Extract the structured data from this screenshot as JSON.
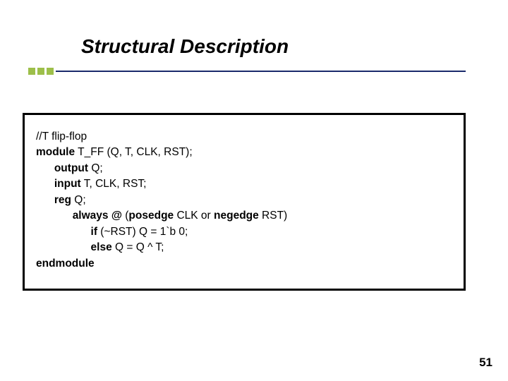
{
  "slide": {
    "title": "Structural Description",
    "title_color": "#000000",
    "title_fontsize": 28,
    "bullet_color": "#9dbf4a",
    "underline_color": "#1a2a6c",
    "page_number": "51",
    "background_color": "#ffffff"
  },
  "code": {
    "box_border_color": "#000000",
    "box_border_width": 3,
    "font_family": "Verdana",
    "font_size": 15.5,
    "text_color": "#000000",
    "lines": [
      {
        "indent": 0,
        "segments": [
          {
            "t": "//T flip-flop",
            "b": false
          }
        ]
      },
      {
        "indent": 0,
        "segments": [
          {
            "t": "module",
            "b": true
          },
          {
            "t": " T_FF (Q, T, CLK, RST);",
            "b": false
          }
        ]
      },
      {
        "indent": 1,
        "segments": [
          {
            "t": "output",
            "b": true
          },
          {
            "t": " Q;",
            "b": false
          }
        ]
      },
      {
        "indent": 1,
        "segments": [
          {
            "t": "input",
            "b": true
          },
          {
            "t": " T, CLK, RST;",
            "b": false
          }
        ]
      },
      {
        "indent": 1,
        "segments": [
          {
            "t": "reg",
            "b": true
          },
          {
            "t": " Q;",
            "b": false
          }
        ]
      },
      {
        "indent": 2,
        "segments": [
          {
            "t": "always @",
            "b": true
          },
          {
            "t": " (",
            "b": false
          },
          {
            "t": "posedge",
            "b": true
          },
          {
            "t": " CLK or ",
            "b": false
          },
          {
            "t": "negedge",
            "b": true
          },
          {
            "t": " RST)",
            "b": false
          }
        ]
      },
      {
        "indent": 3,
        "segments": [
          {
            "t": "if",
            "b": true
          },
          {
            "t": " (~RST) Q = 1`b 0;",
            "b": false
          }
        ]
      },
      {
        "indent": 3,
        "segments": [
          {
            "t": "else",
            "b": true
          },
          {
            "t": " Q = Q ^ T;",
            "b": false
          }
        ]
      },
      {
        "indent": 0,
        "segments": [
          {
            "t": "endmodule",
            "b": true
          }
        ]
      }
    ],
    "indent_unit": "      "
  }
}
